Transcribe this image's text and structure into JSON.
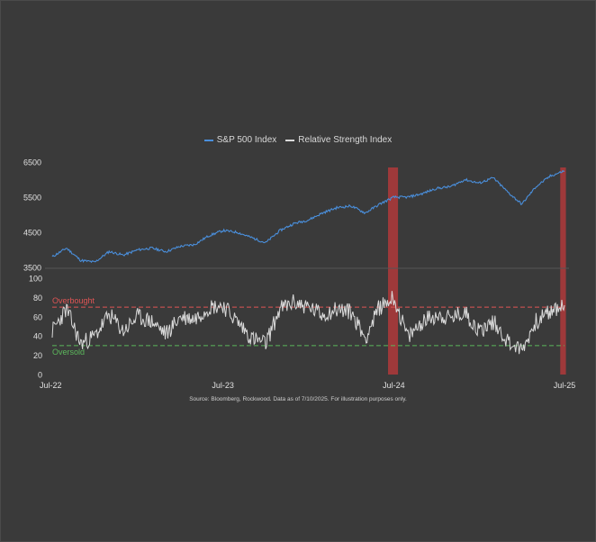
{
  "legend": {
    "sp500_label": "S&P 500 Index",
    "rsi_label": "Relative Strength Index"
  },
  "colors": {
    "background": "#3a3a3a",
    "sp500": "#4a8fdc",
    "rsi": "#d9d9d9",
    "overbought": "#e05555",
    "oversold": "#5cb85c",
    "highlight": "#c0393b",
    "axis_text": "#e0e0e0"
  },
  "source_note": "Source: Bloomberg, Rockwood. Data as of 7/10/2025. For illustration purposes only.",
  "chart_data": [
    {
      "type": "line",
      "name": "S&P 500 Index",
      "title": "",
      "ylim": [
        3500,
        6600
      ],
      "y_ticks": [
        "6500",
        "5500",
        "4500",
        "3500"
      ],
      "y_tick_values": [
        6500,
        5500,
        4500,
        3500
      ],
      "x_start": "2022-07",
      "x_end": "2025-07",
      "x_values_months_since_jul22": [
        0,
        1,
        2,
        3,
        4,
        5,
        6,
        7,
        8,
        9,
        10,
        11,
        12,
        13,
        14,
        15,
        16,
        17,
        18,
        19,
        20,
        21,
        22,
        23,
        24,
        25,
        26,
        27,
        28,
        29,
        30,
        31,
        32,
        33,
        34,
        35,
        36
      ],
      "values": [
        3800,
        4050,
        3700,
        3650,
        3950,
        3850,
        4000,
        4050,
        3950,
        4100,
        4150,
        4400,
        4550,
        4500,
        4350,
        4200,
        4550,
        4750,
        4850,
        5050,
        5200,
        5250,
        5050,
        5300,
        5500,
        5500,
        5600,
        5750,
        5800,
        6000,
        5900,
        6050,
        5650,
        5300,
        5800,
        6100,
        6250
      ]
    },
    {
      "type": "line",
      "name": "Relative Strength Index",
      "ylim": [
        0,
        100
      ],
      "y_ticks": [
        "100",
        "80",
        "60",
        "40",
        "20",
        "0"
      ],
      "y_tick_values": [
        100,
        80,
        60,
        40,
        20,
        0
      ],
      "x_ticks": [
        "Jul-22",
        "Jul-23",
        "Jul-24",
        "Jul-25"
      ],
      "x_tick_months": [
        0,
        12,
        24,
        36
      ],
      "thresholds": [
        {
          "label": "Overbought",
          "value": 70
        },
        {
          "label": "Oversold",
          "value": 30
        }
      ],
      "x_values_months_since_jul22": [
        0,
        1,
        2,
        3,
        4,
        5,
        6,
        7,
        8,
        9,
        10,
        11,
        12,
        13,
        14,
        15,
        16,
        17,
        18,
        19,
        20,
        21,
        22,
        23,
        24,
        25,
        26,
        27,
        28,
        29,
        30,
        31,
        32,
        33,
        34,
        35,
        36
      ],
      "values": [
        45,
        68,
        32,
        40,
        62,
        45,
        60,
        55,
        42,
        60,
        58,
        70,
        72,
        55,
        38,
        32,
        68,
        75,
        70,
        62,
        68,
        65,
        38,
        70,
        80,
        38,
        55,
        62,
        58,
        65,
        45,
        55,
        35,
        25,
        55,
        65,
        72
      ],
      "highlight_periods_months": [
        [
          23.6,
          24.3
        ],
        [
          35.7,
          36.1
        ]
      ]
    }
  ]
}
